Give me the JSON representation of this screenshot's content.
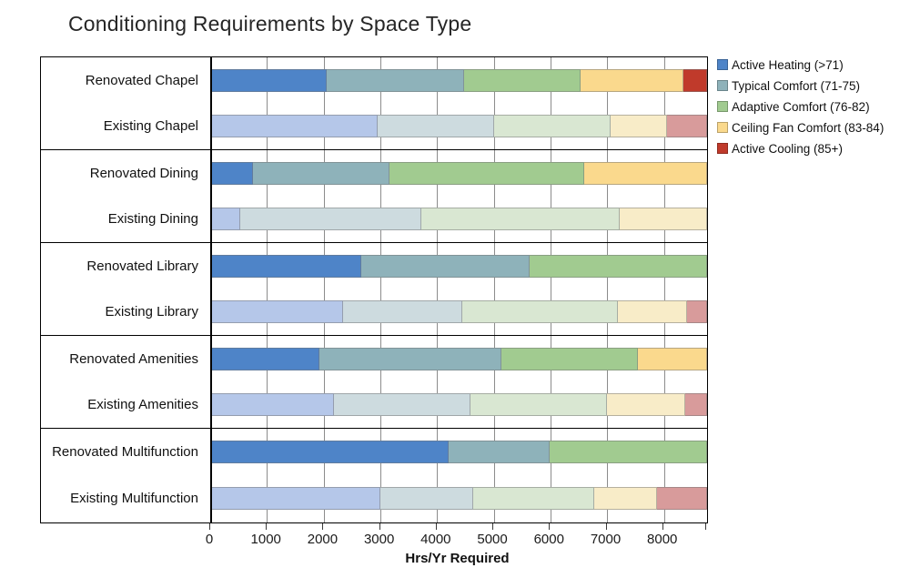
{
  "title": "Conditioning Requirements by Space Type",
  "x_axis": {
    "label": "Hrs/Yr Required",
    "ticks": [
      0,
      1000,
      2000,
      3000,
      4000,
      5000,
      6000,
      7000,
      8000
    ],
    "max": 8760
  },
  "legend": [
    {
      "label": "Active Heating (>71)",
      "color": "#4e84c8"
    },
    {
      "label": "Typical Comfort (71-75)",
      "color": "#8eb2ba"
    },
    {
      "label": "Adaptive Comfort (76-82)",
      "color": "#a1cb90"
    },
    {
      "label": "Ceiling Fan Comfort (83-84)",
      "color": "#fad98d"
    },
    {
      "label": "Active Cooling (85+)",
      "color": "#c03a2b"
    }
  ],
  "colors": {
    "renovated": [
      "#4e84c8",
      "#8eb2ba",
      "#a1cb90",
      "#fad98d",
      "#c03a2b"
    ],
    "existing": [
      "#b5c7e9",
      "#cddbdf",
      "#d9e7d2",
      "#f8ecc8",
      "#d89b9b"
    ]
  },
  "chart_data": {
    "type": "bar",
    "orientation": "horizontal",
    "stacked": true,
    "title": "Conditioning Requirements by Space Type",
    "xlabel": "Hrs/Yr Required",
    "xlim": [
      0,
      8760
    ],
    "xticks": [
      0,
      1000,
      2000,
      3000,
      4000,
      5000,
      6000,
      7000,
      8000
    ],
    "grid": true,
    "legend_position": "top-right",
    "series": [
      "Active Heating (>71)",
      "Typical Comfort (71-75)",
      "Adaptive Comfort (76-82)",
      "Ceiling Fan Comfort (83-84)",
      "Active Cooling (85+)"
    ],
    "rows": [
      {
        "label": "Renovated Chapel",
        "group": "Chapel",
        "variant": "renovated",
        "values": [
          2050,
          2420,
          2060,
          1820,
          410
        ]
      },
      {
        "label": "Existing Chapel",
        "group": "Chapel",
        "variant": "existing",
        "values": [
          2960,
          2040,
          2060,
          990,
          710
        ]
      },
      {
        "label": "Renovated Dining",
        "group": "Dining",
        "variant": "renovated",
        "values": [
          750,
          2410,
          3440,
          2160,
          0
        ]
      },
      {
        "label": "Existing Dining",
        "group": "Dining",
        "variant": "existing",
        "values": [
          530,
          3190,
          3500,
          1540,
          0
        ]
      },
      {
        "label": "Renovated Library",
        "group": "Library",
        "variant": "renovated",
        "values": [
          2670,
          2960,
          3130,
          0,
          0
        ]
      },
      {
        "label": "Existing Library",
        "group": "Library",
        "variant": "existing",
        "values": [
          2340,
          2100,
          2750,
          1220,
          350
        ]
      },
      {
        "label": "Renovated Amenities",
        "group": "Amenities",
        "variant": "renovated",
        "values": [
          1920,
          3220,
          2400,
          1220,
          0
        ]
      },
      {
        "label": "Existing Amenities",
        "group": "Amenities",
        "variant": "existing",
        "values": [
          2180,
          2410,
          2410,
          1380,
          380
        ]
      },
      {
        "label": "Renovated Multifunction",
        "group": "Multifunction",
        "variant": "renovated",
        "values": [
          4210,
          1770,
          2780,
          0,
          0
        ]
      },
      {
        "label": "Existing Multifunction",
        "group": "Multifunction",
        "variant": "existing",
        "values": [
          3000,
          1640,
          2130,
          1100,
          890
        ]
      }
    ]
  }
}
